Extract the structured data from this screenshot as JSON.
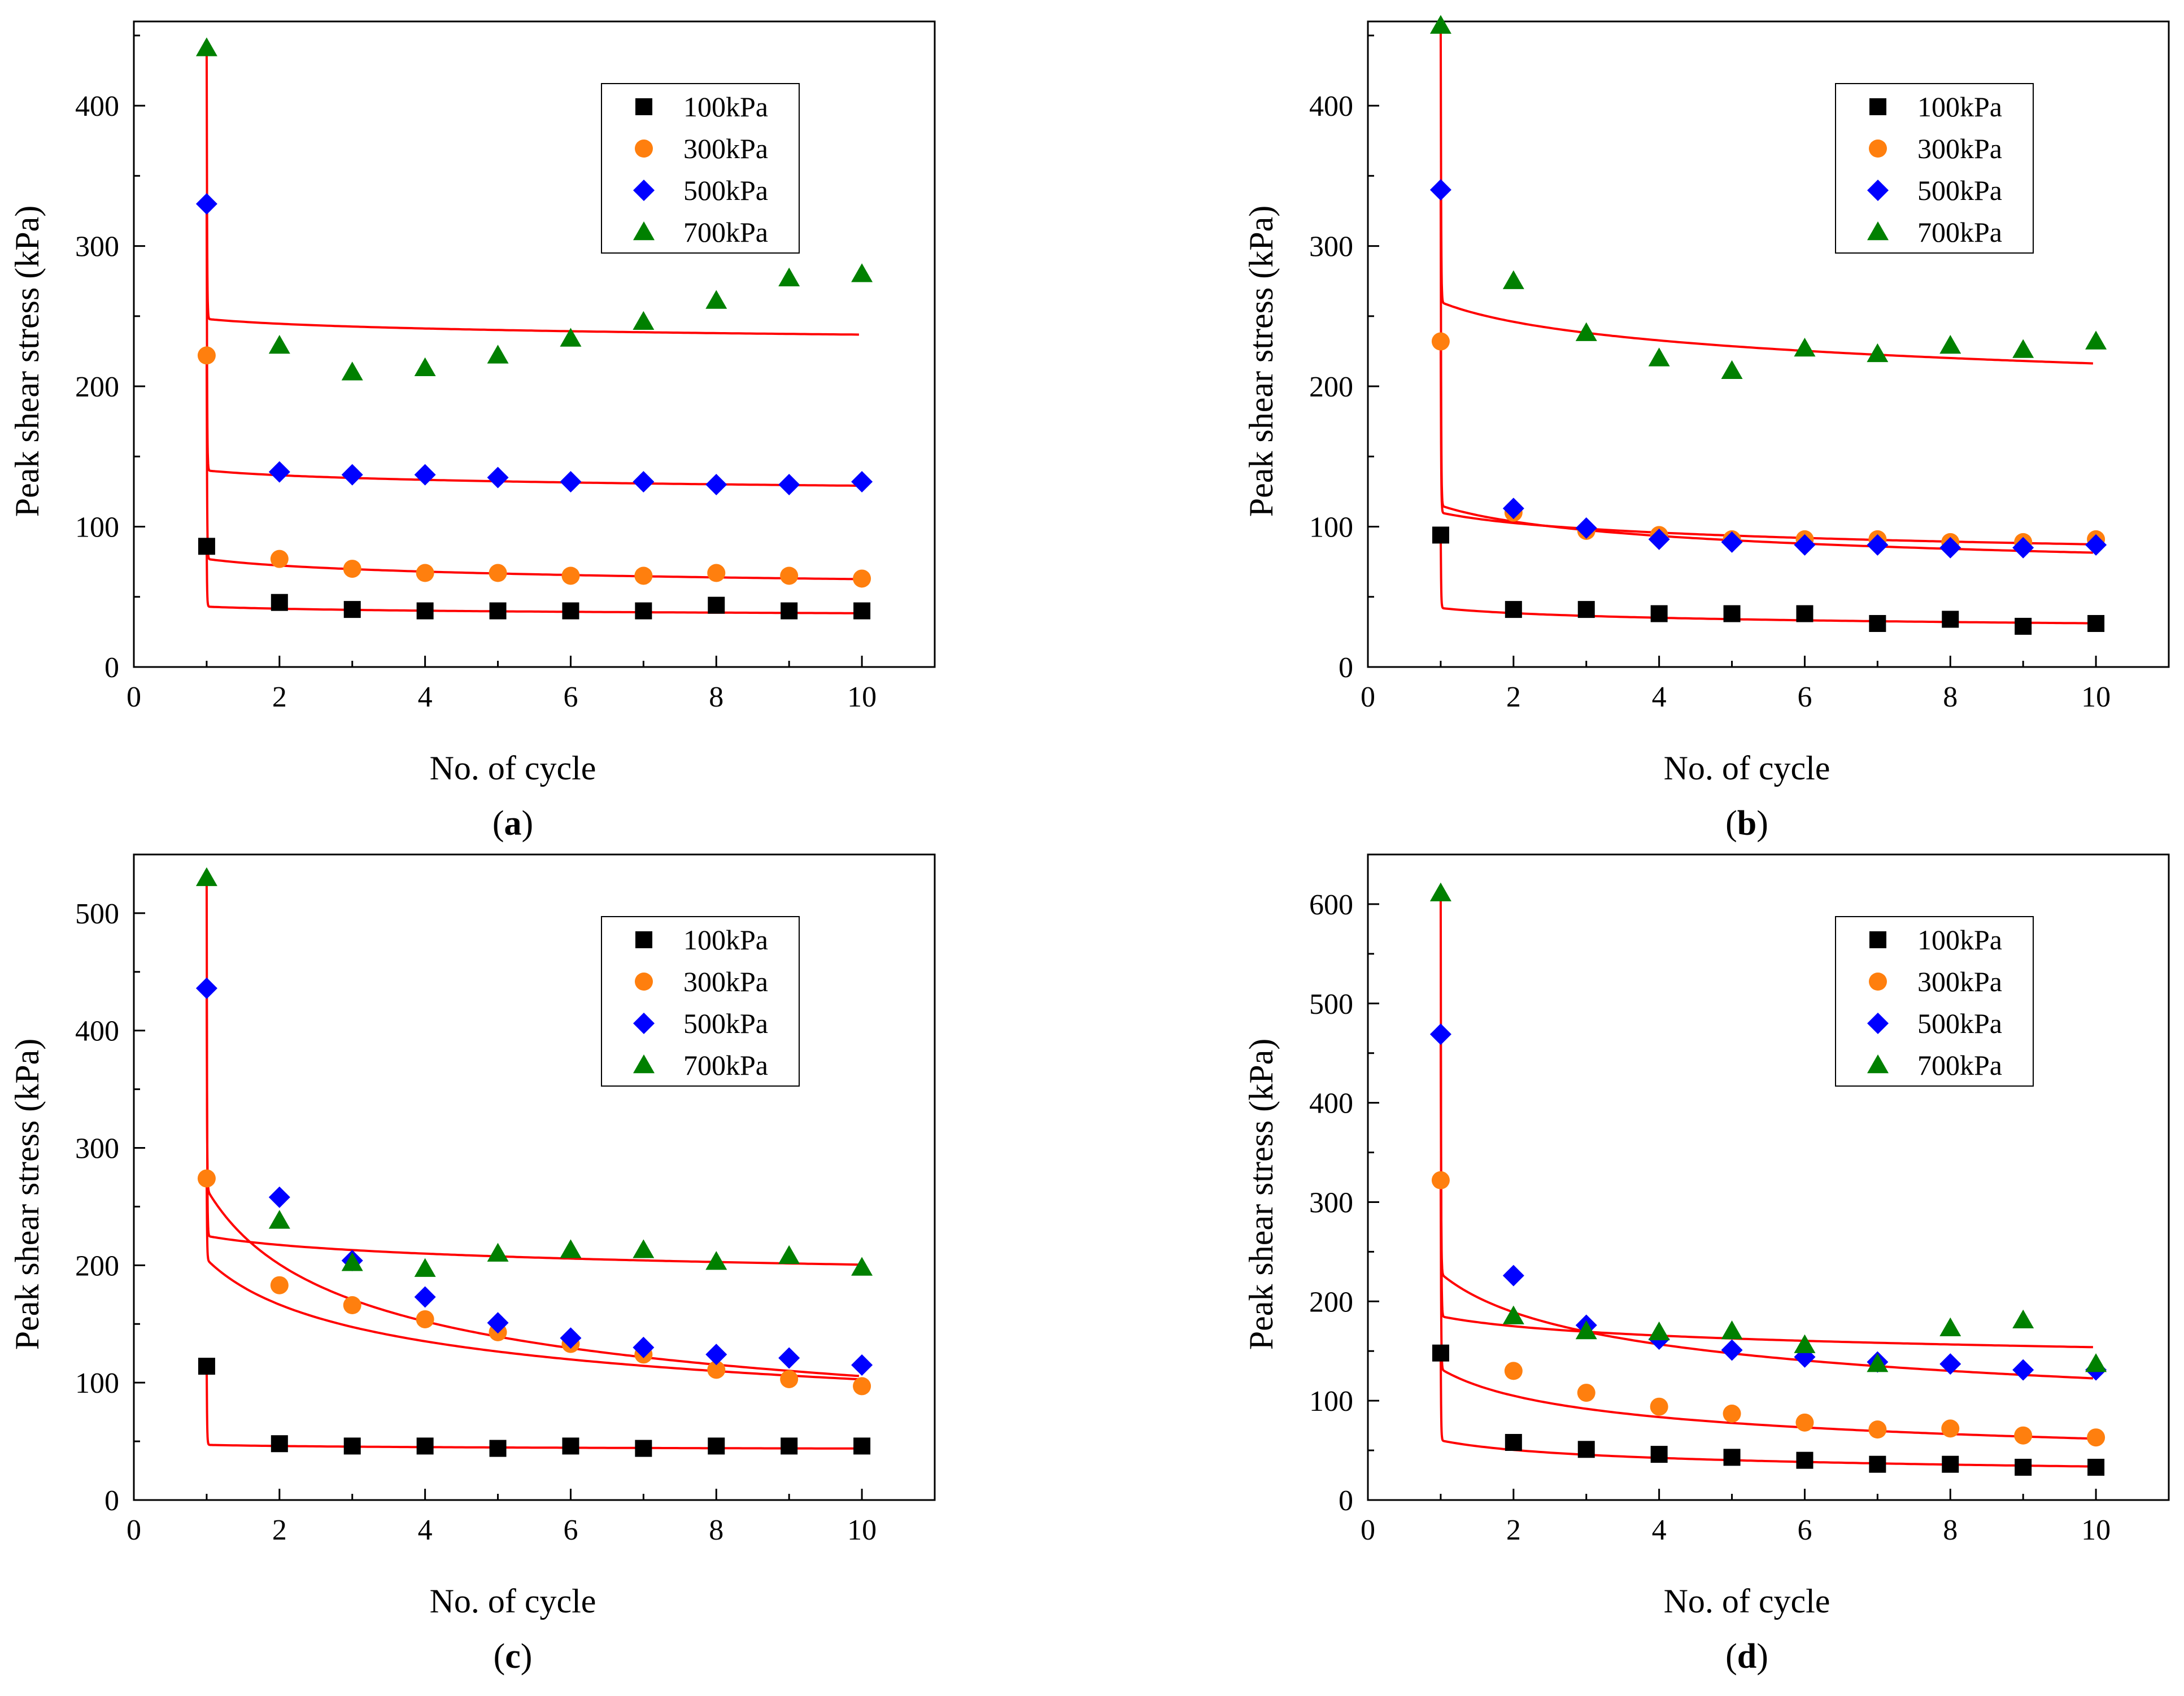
{
  "figure": {
    "caption_labels": [
      "a",
      "b",
      "c",
      "d"
    ]
  },
  "colors": {
    "100kPa": "#000000",
    "300kPa": "#ff7f0e",
    "500kPa": "#0000ff",
    "700kPa": "#008000",
    "fit": "#ff0000"
  },
  "chart_data": [
    {
      "panel": "a",
      "type": "scatter",
      "xlabel": "No. of cycle",
      "ylabel": "Peak shear stress (kPa)",
      "xlim": [
        0,
        11
      ],
      "ylim": [
        0,
        460
      ],
      "xticks": [
        0,
        2,
        4,
        6,
        8,
        10
      ],
      "yticks": [
        0,
        100,
        200,
        300,
        400
      ],
      "legend": [
        "100kPa",
        "300kPa",
        "500kPa",
        "700kPa"
      ],
      "x": [
        1,
        2,
        3,
        4,
        5,
        6,
        7,
        8,
        9,
        10
      ],
      "series": [
        {
          "name": "100kPa",
          "marker": "square",
          "values": [
            86,
            46,
            41,
            40,
            40,
            40,
            40,
            44,
            40,
            40
          ]
        },
        {
          "name": "300kPa",
          "marker": "circle",
          "values": [
            222,
            77,
            70,
            67,
            67,
            65,
            65,
            67,
            65,
            63
          ]
        },
        {
          "name": "500kPa",
          "marker": "diamond",
          "values": [
            330,
            139,
            137,
            137,
            135,
            132,
            132,
            130,
            130,
            132
          ]
        },
        {
          "name": "700kPa",
          "marker": "triangle",
          "values": [
            441,
            229,
            210,
            213,
            222,
            234,
            246,
            261,
            277,
            280
          ]
        }
      ],
      "fits": [
        {
          "name": "100kPa",
          "start": 86,
          "a": 43,
          "b": 0.05
        },
        {
          "name": "300kPa",
          "start": 222,
          "a": 77,
          "b": 0.09
        },
        {
          "name": "500kPa",
          "start": 330,
          "a": 140,
          "b": 0.035
        },
        {
          "name": "700kPa",
          "start": 441,
          "a": 248,
          "b": 0.02
        }
      ]
    },
    {
      "panel": "b",
      "type": "scatter",
      "xlabel": "No. of cycle",
      "ylabel": "Peak shear stress (kPa)",
      "xlim": [
        0,
        11
      ],
      "ylim": [
        0,
        460
      ],
      "xticks": [
        0,
        2,
        4,
        6,
        8,
        10
      ],
      "yticks": [
        0,
        100,
        200,
        300,
        400
      ],
      "legend": [
        "100kPa",
        "300kPa",
        "500kPa",
        "700kPa"
      ],
      "x": [
        1,
        2,
        3,
        4,
        5,
        6,
        7,
        8,
        9,
        10
      ],
      "series": [
        {
          "name": "100kPa",
          "marker": "square",
          "values": [
            94,
            41,
            41,
            38,
            38,
            38,
            31,
            34,
            29,
            31
          ]
        },
        {
          "name": "300kPa",
          "marker": "circle",
          "values": [
            232,
            110,
            97,
            94,
            91,
            91,
            91,
            89,
            89,
            91
          ]
        },
        {
          "name": "500kPa",
          "marker": "diamond",
          "values": [
            340,
            113,
            99,
            91,
            89,
            87,
            87,
            85,
            85,
            87
          ]
        },
        {
          "name": "700kPa",
          "marker": "triangle",
          "values": [
            457,
            275,
            238,
            220,
            211,
            227,
            223,
            229,
            226,
            232
          ]
        }
      ],
      "fits": [
        {
          "name": "100kPa",
          "start": 94,
          "a": 42,
          "b": 0.13
        },
        {
          "name": "300kPa",
          "start": 232,
          "a": 110,
          "b": 0.1
        },
        {
          "name": "500kPa",
          "start": 340,
          "a": 115,
          "b": 0.15
        },
        {
          "name": "700kPa",
          "start": 457,
          "a": 260,
          "b": 0.08
        }
      ]
    },
    {
      "panel": "c",
      "type": "scatter",
      "xlabel": "No. of cycle",
      "ylabel": "Peak shear stress (kPa)",
      "xlim": [
        0,
        11
      ],
      "ylim": [
        0,
        550
      ],
      "xticks": [
        0,
        2,
        4,
        6,
        8,
        10
      ],
      "yticks": [
        0,
        100,
        200,
        300,
        400,
        500
      ],
      "legend": [
        "100kPa",
        "300kPa",
        "500kPa",
        "700kPa"
      ],
      "x": [
        1,
        2,
        3,
        4,
        5,
        6,
        7,
        8,
        9,
        10
      ],
      "series": [
        {
          "name": "100kPa",
          "marker": "square",
          "values": [
            114,
            48,
            46,
            46,
            44,
            46,
            44,
            46,
            46,
            46
          ]
        },
        {
          "name": "300kPa",
          "marker": "circle",
          "values": [
            274,
            183,
            166,
            154,
            143,
            133,
            124,
            111,
            103,
            97
          ]
        },
        {
          "name": "500kPa",
          "marker": "diamond",
          "values": [
            436,
            258,
            204,
            173,
            151,
            138,
            130,
            124,
            121,
            115
          ]
        },
        {
          "name": "700kPa",
          "marker": "triangle",
          "values": [
            530,
            238,
            202,
            197,
            210,
            213,
            213,
            203,
            208,
            198
          ]
        }
      ],
      "fits": [
        {
          "name": "100kPa",
          "start": 114,
          "a": 47,
          "b": 0.03
        },
        {
          "name": "300kPa",
          "start": 274,
          "a": 205,
          "b": 0.3
        },
        {
          "name": "500kPa",
          "start": 436,
          "a": 265,
          "b": 0.4
        },
        {
          "name": "700kPa",
          "start": 530,
          "a": 225,
          "b": 0.05
        }
      ]
    },
    {
      "panel": "d",
      "type": "scatter",
      "xlabel": "No. of cycle",
      "ylabel": "Peak shear stress (kPa)",
      "xlim": [
        0,
        11
      ],
      "ylim": [
        0,
        650
      ],
      "xticks": [
        0,
        2,
        4,
        6,
        8,
        10
      ],
      "yticks": [
        0,
        100,
        200,
        300,
        400,
        500,
        600
      ],
      "legend": [
        "100kPa",
        "300kPa",
        "500kPa",
        "700kPa"
      ],
      "x": [
        1,
        2,
        3,
        4,
        5,
        6,
        7,
        8,
        9,
        10
      ],
      "series": [
        {
          "name": "100kPa",
          "marker": "square",
          "values": [
            148,
            58,
            51,
            46,
            43,
            40,
            36,
            36,
            33,
            33
          ]
        },
        {
          "name": "300kPa",
          "marker": "circle",
          "values": [
            322,
            130,
            108,
            94,
            87,
            78,
            71,
            72,
            65,
            63
          ]
        },
        {
          "name": "500kPa",
          "marker": "diamond",
          "values": [
            469,
            226,
            176,
            162,
            151,
            144,
            139,
            137,
            131,
            131
          ]
        },
        {
          "name": "700kPa",
          "marker": "triangle",
          "values": [
            611,
            185,
            170,
            169,
            170,
            156,
            137,
            173,
            181,
            137
          ]
        }
      ],
      "fits": [
        {
          "name": "100kPa",
          "start": 148,
          "a": 60,
          "b": 0.25
        },
        {
          "name": "300kPa",
          "start": 322,
          "a": 132,
          "b": 0.33
        },
        {
          "name": "500kPa",
          "start": 469,
          "a": 228,
          "b": 0.27
        },
        {
          "name": "700kPa",
          "start": 611,
          "a": 185,
          "b": 0.08
        }
      ]
    }
  ]
}
